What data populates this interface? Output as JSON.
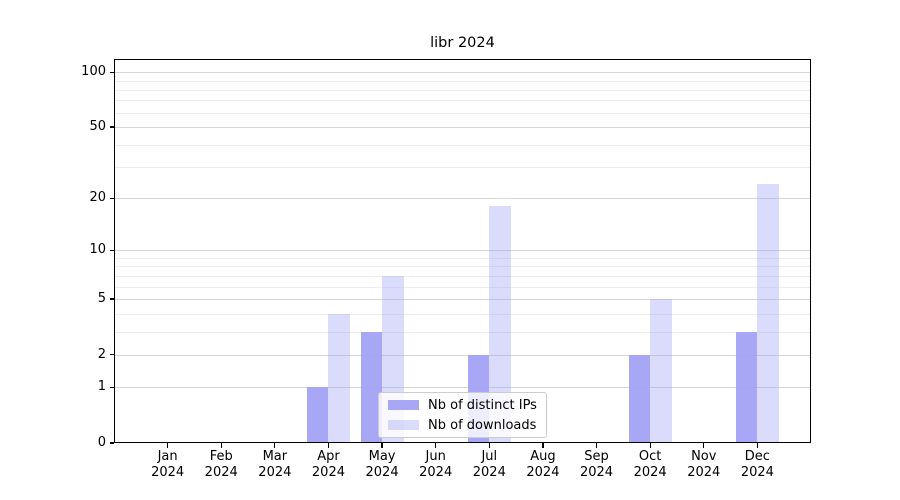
{
  "chart_data": {
    "type": "bar",
    "title": "libr 2024",
    "scale": "log1p",
    "grid": true,
    "categories": [
      "Jan",
      "Feb",
      "Mar",
      "Apr",
      "May",
      "Jun",
      "Jul",
      "Aug",
      "Sep",
      "Oct",
      "Nov",
      "Dec"
    ],
    "x_year": "2024",
    "series": [
      {
        "name": "Nb of distinct IPs",
        "color": "#a0a0f4",
        "alpha": 0.92,
        "values": [
          0,
          0,
          0,
          1,
          3,
          0,
          2,
          0,
          0,
          2,
          0,
          3
        ]
      },
      {
        "name": "Nb of downloads",
        "color": "#a0a0f4",
        "alpha": 0.38,
        "values": [
          0,
          0,
          0,
          4,
          7,
          0,
          18,
          0,
          0,
          5,
          0,
          24
        ]
      }
    ],
    "y_major_ticks": [
      0,
      1,
      2,
      5,
      10,
      20,
      50,
      100
    ],
    "y_minor_ticks": [
      3,
      4,
      6,
      7,
      8,
      9,
      30,
      40,
      60,
      70,
      80,
      90
    ],
    "ylim": [
      0,
      118
    ],
    "legend_position": "lower center"
  },
  "colors": {
    "major_grid": "#d6d6d6",
    "minor_grid": "#ededed",
    "axis": "#000000",
    "legend_border": "#cccccc"
  }
}
